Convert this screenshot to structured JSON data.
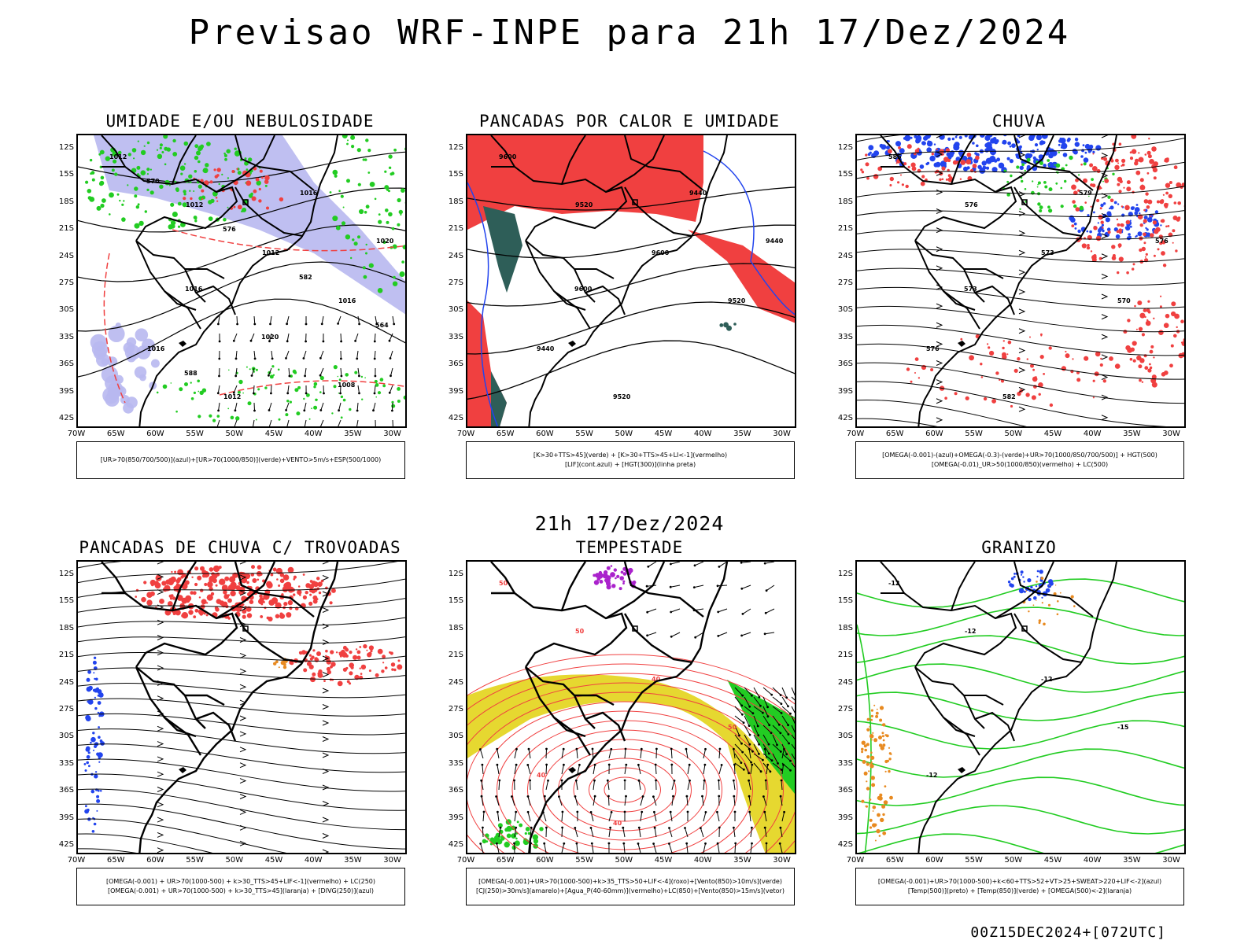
{
  "title": "Previsao WRF-INPE  para 21h 17/Dez/2024",
  "subtitle": "21h 17/Dez/2024",
  "footer": "00Z15DEC2024+[072UTC]",
  "lat_labels": [
    "12S",
    "15S",
    "18S",
    "21S",
    "24S",
    "27S",
    "30S",
    "33S",
    "36S",
    "39S",
    "42S"
  ],
  "lon_labels": [
    "70W",
    "65W",
    "60W",
    "55W",
    "50W",
    "45W",
    "40W",
    "35W",
    "30W"
  ],
  "colors": {
    "red": "#f04040",
    "green": "#22cc22",
    "blue": "#2244ee",
    "lavender": "#b8b8f0",
    "yellow": "#e6d830",
    "teal": "#2e5e58",
    "purple": "#aa22cc",
    "orange": "#e88a20"
  },
  "panels": [
    {
      "title": "UMIDADE E/OU NEBULOSIDADE",
      "legend": [
        "[UR>70(850/700/500)](azul)+[UR>70(1000/850)](verde)+VENTO>5m/s+ESP(500/1000)"
      ],
      "labels": [
        "1012",
        "1012",
        "1012",
        "1016",
        "1016",
        "1012",
        "1016",
        "1020",
        "1016",
        "1020",
        "1008",
        "570",
        "576",
        "582",
        "564",
        "588"
      ]
    },
    {
      "title": "PANCADAS POR CALOR E UMIDADE",
      "legend": [
        "[K>30+TTS>45](verde) + [K>30+TTS>45+LI<-1](vermelho)",
        "[LIF](cont.azul) + [HGT(300)](linha preta)"
      ],
      "labels": [
        "9600",
        "9520",
        "9600",
        "9520",
        "9440",
        "9520",
        "9440",
        "9440",
        "9600"
      ]
    },
    {
      "title": "CHUVA",
      "legend": [
        "[OMEGA(-0.001)-(azul)+OMEGA(-0.3)-(verde)+UR>70(1000/850/700/500)] + HGT(500)",
        "[OMEGA(-0.01)_UR>50(1000/850)(vermelho) + LC(500)"
      ],
      "labels": [
        "585",
        "576",
        "573",
        "570",
        "576",
        "582",
        "579",
        "576",
        "573"
      ]
    },
    {
      "title": "PANCADAS DE CHUVA C/ TROVOADAS",
      "legend": [
        "[OMEGA(-0.001) + UR>70(1000-500) + k>30_TTS>45+LIF<-1](vermelho) + LC(250)",
        "[OMEGA(-0.001) + UR>70(1000-500) + k>30_TTS>45](laranja) + [DIVG(250)](azul)"
      ],
      "labels": []
    },
    {
      "title": "TEMPESTADE",
      "legend": [
        "[OMEGA(-0.001)+UR>70(1000-500)+k>35_TTS>50+LIF<-4](roxo)+[Vento(850)>10m/s](verde)",
        "[CJ(250)>30m/s](amarelo)+[Agua_P(40-60mm)](vermelho)+LC(850)+[Vento(850)>15m/s](vetor)"
      ],
      "labels": [
        "50",
        "50",
        "40",
        "50",
        "40",
        "40"
      ]
    },
    {
      "title": "GRANIZO",
      "legend": [
        "[OMEGA(-0.001)+UR>70(1000-500)+k<60+TTS>52+VT>25+SWEAT>220+LIF<-2](azul)",
        "[Temp(500)](preto) + [Temp(850)](verde) + [OMEGA(500)<-2](laranja)"
      ],
      "labels": [
        "-12",
        "-12",
        "-12",
        "-15",
        "-12"
      ]
    }
  ]
}
